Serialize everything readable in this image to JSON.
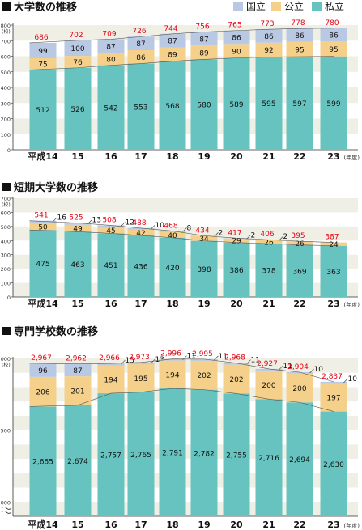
{
  "colors": {
    "national": "#b9c9e3",
    "public": "#f4d08a",
    "private": "#67c3c0",
    "band": "#efefe6",
    "total_label": "#e60012",
    "heading_square": "#111111"
  },
  "legend": [
    {
      "label": "国立",
      "color_key": "national"
    },
    {
      "label": "公立",
      "color_key": "public"
    },
    {
      "label": "私立",
      "color_key": "private"
    }
  ],
  "chart_data": [
    {
      "type": "bar",
      "stacked": true,
      "title": "大学数の推移",
      "unit_label": "(校)",
      "x_suffix_label": "(年度)",
      "categories": [
        "平成14",
        "15",
        "16",
        "17",
        "18",
        "19",
        "20",
        "21",
        "22",
        "23"
      ],
      "series": [
        {
          "name": "私立",
          "color_key": "private",
          "values": [
            512,
            526,
            542,
            553,
            568,
            580,
            589,
            595,
            597,
            599
          ]
        },
        {
          "name": "公立",
          "color_key": "public",
          "values": [
            75,
            76,
            80,
            86,
            89,
            89,
            90,
            92,
            95,
            95
          ]
        },
        {
          "name": "国立",
          "color_key": "national",
          "values": [
            99,
            100,
            87,
            87,
            87,
            87,
            86,
            86,
            86,
            86
          ]
        }
      ],
      "totals": [
        686,
        702,
        709,
        726,
        744,
        756,
        765,
        773,
        778,
        780
      ],
      "total_labels": [
        "686",
        "702",
        "709",
        "726",
        "744",
        "756",
        "765",
        "773",
        "778",
        "780"
      ],
      "value_labels": [
        [
          "512",
          "526",
          "542",
          "553",
          "568",
          "580",
          "589",
          "595",
          "597",
          "599"
        ],
        [
          "75",
          "76",
          "80",
          "86",
          "89",
          "89",
          "90",
          "92",
          "95",
          "95"
        ],
        [
          "99",
          "100",
          "87",
          "87",
          "87",
          "87",
          "86",
          "86",
          "86",
          "86"
        ]
      ],
      "y_ticks": [
        0,
        100,
        200,
        300,
        400,
        500,
        600,
        700,
        800
      ],
      "y_tick_labels": [
        "0",
        "100",
        "200",
        "300",
        "400",
        "500",
        "600",
        "700",
        "800"
      ],
      "ylim": [
        0,
        800
      ],
      "grid": "alternating bands",
      "axis_break": false
    },
    {
      "type": "bar",
      "stacked": true,
      "title": "短期大学数の推移",
      "unit_label": "(校)",
      "x_suffix_label": "(年度)",
      "categories": [
        "平成14",
        "15",
        "16",
        "17",
        "18",
        "19",
        "20",
        "21",
        "22",
        "23"
      ],
      "series": [
        {
          "name": "私立",
          "color_key": "private",
          "values": [
            475,
            463,
            451,
            436,
            420,
            398,
            386,
            378,
            369,
            363
          ]
        },
        {
          "name": "公立",
          "color_key": "public",
          "values": [
            50,
            49,
            45,
            42,
            40,
            34,
            29,
            26,
            26,
            24
          ]
        },
        {
          "name": "国立",
          "color_key": "national",
          "values": [
            16,
            13,
            12,
            10,
            8,
            2,
            2,
            2,
            0,
            0
          ]
        }
      ],
      "totals": [
        541,
        525,
        508,
        488,
        468,
        434,
        417,
        406,
        395,
        387
      ],
      "total_labels": [
        "541",
        "525",
        "508",
        "488",
        "468",
        "434",
        "417",
        "406",
        "395",
        "387"
      ],
      "value_labels": [
        [
          "475",
          "463",
          "451",
          "436",
          "420",
          "398",
          "386",
          "378",
          "369",
          "363"
        ],
        [
          "50",
          "49",
          "45",
          "42",
          "40",
          "34",
          "29",
          "26",
          "26",
          "24"
        ],
        [
          "16",
          "13",
          "12",
          "10",
          "8",
          "2",
          "2",
          "2",
          "",
          ""
        ]
      ],
      "y_ticks": [
        0,
        100,
        200,
        300,
        400,
        500,
        600,
        700
      ],
      "y_tick_labels": [
        "0",
        "100",
        "200",
        "300",
        "400",
        "500",
        "600",
        "700"
      ],
      "ylim": [
        0,
        700
      ],
      "grid": "alternating bands",
      "axis_break": false
    },
    {
      "type": "bar",
      "stacked": true,
      "title": "専門学校数の推移",
      "unit_label": "(校)",
      "x_suffix_label": "(年度)",
      "categories": [
        "平成14",
        "15",
        "16",
        "17",
        "18",
        "19",
        "20",
        "21",
        "22",
        "23"
      ],
      "series": [
        {
          "name": "私立",
          "color_key": "private",
          "values": [
            2665,
            2674,
            2757,
            2765,
            2791,
            2782,
            2755,
            2716,
            2694,
            2630
          ]
        },
        {
          "name": "公立",
          "color_key": "public",
          "values": [
            206,
            201,
            194,
            195,
            194,
            202,
            202,
            200,
            200,
            197
          ]
        },
        {
          "name": "国立",
          "color_key": "national",
          "values": [
            96,
            87,
            15,
            13,
            11,
            11,
            11,
            11,
            10,
            10
          ]
        }
      ],
      "totals": [
        2967,
        2962,
        2966,
        2973,
        2996,
        2995,
        2968,
        2927,
        2904,
        2837
      ],
      "total_labels": [
        "2,967",
        "2,962",
        "2,966",
        "2,973",
        "2,996",
        "2,995",
        "2,968",
        "2,927",
        "2,904",
        "2,837"
      ],
      "value_labels": [
        [
          "2,665",
          "2,674",
          "2,757",
          "2,765",
          "2,791",
          "2,782",
          "2,755",
          "2,716",
          "2,694",
          "2,630"
        ],
        [
          "206",
          "201",
          "194",
          "195",
          "194",
          "202",
          "202",
          "200",
          "200",
          "197"
        ],
        [
          "96",
          "87",
          "15",
          "13",
          "11",
          "11",
          "11",
          "11",
          "10",
          "10"
        ]
      ],
      "y_ticks": [
        2000,
        2500,
        3000
      ],
      "y_tick_labels": [
        "2,000",
        "2,500",
        "3,000"
      ],
      "ylim": [
        1900,
        3000
      ],
      "grid": "alternating bands",
      "axis_break": true
    }
  ]
}
